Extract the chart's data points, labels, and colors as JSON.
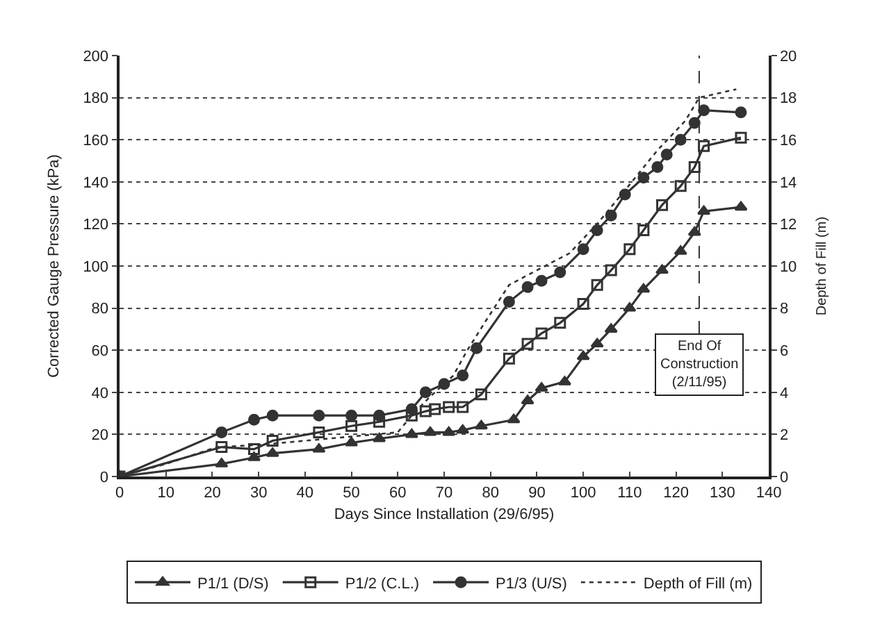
{
  "chart_data": {
    "type": "line",
    "xlabel": "Days Since Installation (29/6/95)",
    "ylabel": "Corrected Gauge Pressure (kPa)",
    "y2label": "Depth of Fill (m)",
    "xlim": [
      0,
      140
    ],
    "xticks": [
      0,
      10,
      20,
      30,
      40,
      50,
      60,
      70,
      80,
      90,
      100,
      110,
      120,
      130,
      140
    ],
    "ylim": [
      0,
      200
    ],
    "yticks": [
      0,
      20,
      40,
      60,
      80,
      100,
      120,
      140,
      160,
      180,
      200
    ],
    "y2lim": [
      0,
      20
    ],
    "y2ticks": [
      0,
      2,
      4,
      6,
      8,
      10,
      12,
      14,
      16,
      18,
      20
    ],
    "grid": "y",
    "legend": "bottom",
    "series": [
      {
        "name": "P1/1 (D/S)",
        "color": "#333333",
        "marker": "triangle",
        "line_style": "solid",
        "x": [
          0,
          22,
          29,
          33,
          43,
          50,
          56,
          63,
          67,
          71,
          74,
          78,
          85,
          88,
          91,
          96,
          100,
          103,
          106,
          110,
          113,
          117,
          121,
          124,
          126,
          134
        ],
        "values": [
          0,
          6,
          9,
          11,
          13,
          16,
          18,
          20,
          21,
          21,
          22,
          24,
          27,
          36,
          42,
          45,
          57,
          63,
          70,
          80,
          89,
          98,
          107,
          116,
          126,
          128
        ]
      },
      {
        "name": "P1/2 (C.L.)",
        "color": "#333333",
        "marker": "square",
        "line_style": "solid",
        "x": [
          0,
          22,
          29,
          33,
          43,
          50,
          56,
          63,
          66,
          68,
          71,
          74,
          78,
          84,
          88,
          91,
          95,
          100,
          103,
          106,
          110,
          113,
          117,
          121,
          124,
          126,
          134
        ],
        "values": [
          0,
          14,
          13,
          17,
          21,
          24,
          26,
          29,
          31,
          32,
          33,
          33,
          39,
          56,
          63,
          68,
          73,
          82,
          91,
          98,
          108,
          117,
          129,
          138,
          147,
          157,
          161
        ]
      },
      {
        "name": "P1/3 (U/S)",
        "color": "#333333",
        "marker": "circle",
        "line_style": "solid",
        "x": [
          0,
          22,
          29,
          33,
          43,
          50,
          56,
          63,
          66,
          70,
          74,
          77,
          84,
          88,
          91,
          95,
          100,
          103,
          106,
          109,
          113,
          116,
          118,
          121,
          124,
          126,
          134
        ],
        "values": [
          0,
          21,
          27,
          29,
          29,
          29,
          29,
          32,
          40,
          44,
          48,
          61,
          83,
          90,
          93,
          97,
          108,
          117,
          124,
          134,
          142,
          147,
          153,
          160,
          168,
          174,
          173
        ]
      },
      {
        "name": "Depth of Fill (m)",
        "color": "#333333",
        "marker": "none",
        "line_style": "dotted",
        "axis": "y2",
        "x": [
          0,
          10,
          21,
          30,
          40,
          50,
          60,
          63,
          67,
          72,
          75,
          79,
          84,
          90,
          97,
          103,
          109,
          116,
          122,
          125,
          133
        ],
        "values": [
          0,
          0.6,
          1.4,
          1.5,
          1.7,
          1.9,
          2.1,
          2.9,
          3.8,
          4.8,
          6.0,
          7.4,
          9.1,
          9.8,
          10.6,
          12.0,
          13.6,
          15.5,
          16.9,
          18.0,
          18.4
        ]
      }
    ],
    "ref_lines": [
      {
        "axis": "x",
        "value": 125,
        "label": "End Of\nConstruction\n(2/11/95)",
        "line_style": "dashed",
        "color": "#333333"
      }
    ]
  }
}
